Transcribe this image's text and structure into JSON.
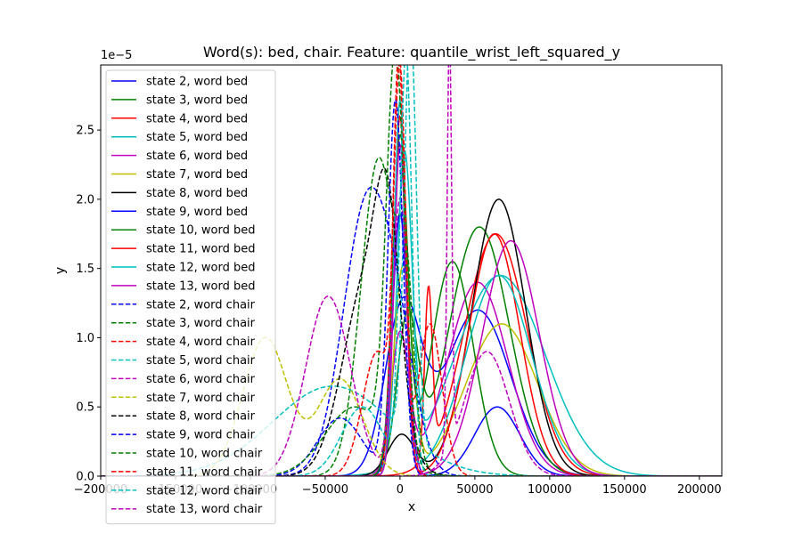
{
  "chart_data": {
    "type": "line",
    "title": "Word(s): bed, chair. Feature: quantile_wrist_left_squared_y",
    "xlabel": "x",
    "ylabel": "y",
    "y_offset_label": "1e−5",
    "xlim": [
      -200000,
      215000
    ],
    "ylim": [
      0,
      2.97
    ],
    "y_scale_note": "values in units of 1e-5",
    "x_ticks": [
      -200000,
      -150000,
      -100000,
      -50000,
      0,
      50000,
      100000,
      150000,
      200000
    ],
    "x_tick_labels": [
      "−200000",
      "−150000",
      "−100000",
      "−50000",
      "0",
      "50000",
      "100000",
      "150000",
      "200000"
    ],
    "y_ticks": [
      0.0,
      0.5,
      1.0,
      1.5,
      2.0,
      2.5
    ],
    "y_tick_labels": [
      "0.0",
      "0.5",
      "1.0",
      "1.5",
      "2.0",
      "2.5"
    ],
    "grid": false,
    "legend_position": "top-left",
    "series": [
      {
        "name": "state 2, word bed",
        "color": "#0000ff",
        "dash": "solid",
        "components": [
          {
            "mu": 2000,
            "sigma": 12000,
            "amp": 1.2
          },
          {
            "mu": 52000,
            "sigma": 22000,
            "amp": 1.2
          }
        ]
      },
      {
        "name": "state 3, word bed",
        "color": "#008000",
        "dash": "solid",
        "components": [
          {
            "mu": 5000,
            "sigma": 7000,
            "amp": 1.1
          },
          {
            "mu": 53000,
            "sigma": 20000,
            "amp": 1.8
          }
        ]
      },
      {
        "name": "state 4, word bed",
        "color": "#ff0000",
        "dash": "solid",
        "components": [
          {
            "mu": 19000,
            "sigma": 2500,
            "amp": 1.2
          },
          {
            "mu": 64000,
            "sigma": 21000,
            "amp": 1.75
          }
        ]
      },
      {
        "name": "state 5, word bed",
        "color": "#00bfbf",
        "dash": "solid",
        "components": [
          {
            "mu": 3000,
            "sigma": 5000,
            "amp": 2.2
          },
          {
            "mu": 67000,
            "sigma": 30000,
            "amp": 1.45
          }
        ]
      },
      {
        "name": "state 6, word bed",
        "color": "#bf00bf",
        "dash": "solid",
        "components": [
          {
            "mu": 0,
            "sigma": 6000,
            "amp": 1.0
          },
          {
            "mu": 52000,
            "sigma": 20000,
            "amp": 1.4
          }
        ]
      },
      {
        "name": "state 7, word bed",
        "color": "#bfbf00",
        "dash": "solid",
        "components": [
          {
            "mu": 2000,
            "sigma": 6000,
            "amp": 1.5
          },
          {
            "mu": 68000,
            "sigma": 24000,
            "amp": 1.1
          }
        ]
      },
      {
        "name": "state 8, word bed",
        "color": "#000000",
        "dash": "solid",
        "components": [
          {
            "mu": 1000,
            "sigma": 9000,
            "amp": 0.3
          },
          {
            "mu": 66000,
            "sigma": 18000,
            "amp": 2.0
          }
        ]
      },
      {
        "name": "state 9, word bed",
        "color": "#0000ff",
        "dash": "solid",
        "components": [
          {
            "mu": 0,
            "sigma": 5000,
            "amp": 1.9
          },
          {
            "mu": 65000,
            "sigma": 15000,
            "amp": 0.5
          }
        ]
      },
      {
        "name": "state 10, word bed",
        "color": "#008000",
        "dash": "solid",
        "components": [
          {
            "mu": 0,
            "sigma": 5000,
            "amp": 2.4
          },
          {
            "mu": 35000,
            "sigma": 14000,
            "amp": 1.55
          }
        ]
      },
      {
        "name": "state 11, word bed",
        "color": "#ff0000",
        "dash": "solid",
        "components": [
          {
            "mu": 0,
            "sigma": 4000,
            "amp": 2.6
          },
          {
            "mu": 63000,
            "sigma": 17000,
            "amp": 1.75
          }
        ]
      },
      {
        "name": "state 12, word bed",
        "color": "#00bfbf",
        "dash": "solid",
        "components": [
          {
            "mu": 0,
            "sigma": 4000,
            "amp": 2.7
          },
          {
            "mu": 66000,
            "sigma": 22000,
            "amp": 1.45
          }
        ]
      },
      {
        "name": "state 13, word bed",
        "color": "#bf00bf",
        "dash": "solid",
        "components": [
          {
            "mu": 0,
            "sigma": 4000,
            "amp": 2.4
          },
          {
            "mu": 74000,
            "sigma": 19000,
            "amp": 1.7
          }
        ]
      },
      {
        "name": "state 2, word chair",
        "color": "#0000ff",
        "dash": "dashed",
        "components": [
          {
            "mu": -22000,
            "sigma": 16000,
            "amp": 1.95
          },
          {
            "mu": 0,
            "sigma": 12000,
            "amp": 0.6
          }
        ]
      },
      {
        "name": "state 3, word chair",
        "color": "#008000",
        "dash": "dashed",
        "components": [
          {
            "mu": -14000,
            "sigma": 12000,
            "amp": 2.3
          },
          {
            "mu": 4000,
            "sigma": 5000,
            "amp": 1.0
          }
        ]
      },
      {
        "name": "state 4, word chair",
        "color": "#ff0000",
        "dash": "dashed",
        "components": [
          {
            "mu": -1000,
            "sigma": 4000,
            "amp": 3.0
          },
          {
            "mu": 20000,
            "sigma": 8000,
            "amp": 1.1
          }
        ]
      },
      {
        "name": "state 5, word chair",
        "color": "#00bfbf",
        "dash": "dashed",
        "components": [
          {
            "mu": 7000,
            "sigma": 4000,
            "amp": 3.0
          },
          {
            "mu": -45000,
            "sigma": 40000,
            "amp": 0.65
          }
        ]
      },
      {
        "name": "state 6, word chair",
        "color": "#bf00bf",
        "dash": "dashed",
        "components": [
          {
            "mu": -48000,
            "sigma": 15000,
            "amp": 1.3
          },
          {
            "mu": 0,
            "sigma": 5000,
            "amp": 2.0
          }
        ]
      },
      {
        "name": "state 7, word chair",
        "color": "#bfbf00",
        "dash": "dashed",
        "components": [
          {
            "mu": -90000,
            "sigma": 15000,
            "amp": 1.0
          },
          {
            "mu": -40000,
            "sigma": 15000,
            "amp": 0.7
          }
        ]
      },
      {
        "name": "state 8, word chair",
        "color": "#000000",
        "dash": "dashed",
        "components": [
          {
            "mu": -22000,
            "sigma": 16000,
            "amp": 1.4
          },
          {
            "mu": -8000,
            "sigma": 8000,
            "amp": 1.2
          }
        ]
      },
      {
        "name": "state 9, word chair",
        "color": "#0000ff",
        "dash": "dashed",
        "components": [
          {
            "mu": -3000,
            "sigma": 5000,
            "amp": 2.7
          },
          {
            "mu": -40000,
            "sigma": 15000,
            "amp": 0.42
          }
        ]
      },
      {
        "name": "state 10, word chair",
        "color": "#008000",
        "dash": "dashed",
        "components": [
          {
            "mu": -3000,
            "sigma": 6000,
            "amp": 2.9
          },
          {
            "mu": -30000,
            "sigma": 20000,
            "amp": 0.5
          }
        ]
      },
      {
        "name": "state 11, word chair",
        "color": "#ff0000",
        "dash": "dashed",
        "components": [
          {
            "mu": 0,
            "sigma": 4000,
            "amp": 2.7
          },
          {
            "mu": -15000,
            "sigma": 10000,
            "amp": 0.9
          }
        ]
      },
      {
        "name": "state 12, word chair",
        "color": "#00bfbf",
        "dash": "dashed",
        "components": [
          {
            "mu": 4000,
            "sigma": 4000,
            "amp": 3.0
          },
          {
            "mu": -25000,
            "sigma": 14000,
            "amp": 0.5
          }
        ]
      },
      {
        "name": "state 13, word chair",
        "color": "#bf00bf",
        "dash": "dashed",
        "components": [
          {
            "mu": 33000,
            "sigma": 1500,
            "amp": 3.0
          },
          {
            "mu": 58000,
            "sigma": 15000,
            "amp": 0.9
          }
        ]
      }
    ]
  }
}
